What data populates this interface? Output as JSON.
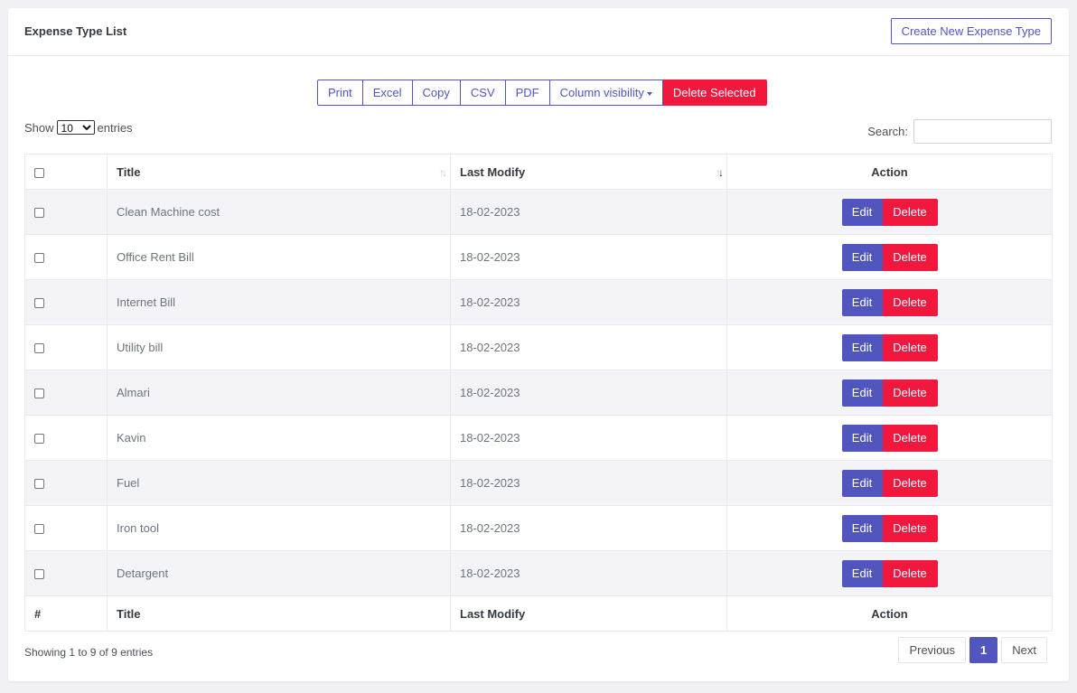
{
  "card": {
    "title": "Expense Type List",
    "create_button": "Create New Expense Type"
  },
  "export_buttons": [
    "Print",
    "Excel",
    "Copy",
    "CSV",
    "PDF",
    "Column visibility",
    "Delete Selected"
  ],
  "length": {
    "show_label": "Show",
    "selected": "10",
    "entries_label": "entries"
  },
  "search": {
    "label": "Search:",
    "value": ""
  },
  "table": {
    "headers": {
      "title": "Title",
      "last_modify": "Last Modify",
      "action": "Action"
    },
    "footers": {
      "hash": "#",
      "title": "Title",
      "last_modify": "Last Modify",
      "action": "Action"
    },
    "rows": [
      {
        "title": "Clean Machine cost",
        "last_modify": "18-02-2023"
      },
      {
        "title": "Office Rent Bill",
        "last_modify": "18-02-2023"
      },
      {
        "title": "Internet Bill",
        "last_modify": "18-02-2023"
      },
      {
        "title": "Utility bill",
        "last_modify": "18-02-2023"
      },
      {
        "title": "Almari",
        "last_modify": "18-02-2023"
      },
      {
        "title": "Kavin",
        "last_modify": "18-02-2023"
      },
      {
        "title": "Fuel",
        "last_modify": "18-02-2023"
      },
      {
        "title": "Iron tool",
        "last_modify": "18-02-2023"
      },
      {
        "title": "Detargent",
        "last_modify": "18-02-2023"
      }
    ],
    "edit_label": "Edit",
    "delete_label": "Delete"
  },
  "footer": {
    "info": "Showing 1 to 9 of 9 entries",
    "previous": "Previous",
    "current_page": "1",
    "next": "Next"
  },
  "colors": {
    "primary": "#5156be",
    "danger": "#f1173d"
  }
}
